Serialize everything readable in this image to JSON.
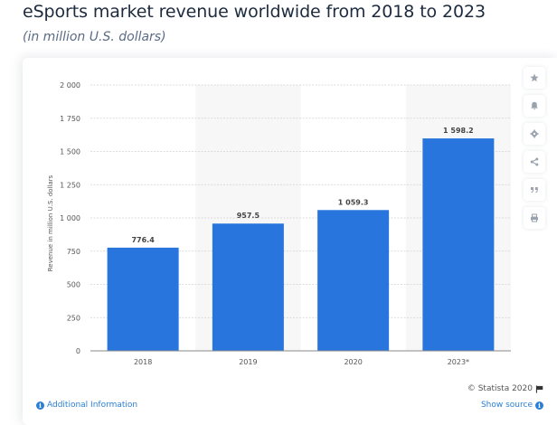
{
  "header": {
    "title": "eSports market revenue worldwide from 2018 to 2023",
    "subtitle": "(in million U.S. dollars)"
  },
  "chart_data": {
    "type": "bar",
    "title": "eSports market revenue worldwide from 2018 to 2023",
    "subtitle": "(in million U.S. dollars)",
    "categories": [
      "2018",
      "2019",
      "2020",
      "2023*"
    ],
    "values": [
      776.4,
      957.5,
      1059.3,
      1598.2
    ],
    "value_labels": [
      "776.4",
      "957.5",
      "1 059.3",
      "1 598.2"
    ],
    "xlabel": "",
    "ylabel": "Revenue in million U.S. dollars",
    "ylim": [
      0,
      2000
    ],
    "yticks": [
      0,
      250,
      500,
      750,
      1000,
      1250,
      1500,
      1750,
      2000
    ],
    "ytick_labels": [
      "0",
      "250",
      "500",
      "750",
      "1 000",
      "1 250",
      "1 500",
      "1 750",
      "2 000"
    ],
    "grid": true,
    "bar_color": "#2876dd",
    "alt_band_color": "#f7f7f7"
  },
  "toolbar": {
    "items": [
      {
        "name": "favorite",
        "icon": "star-icon"
      },
      {
        "name": "notification",
        "icon": "bell-icon"
      },
      {
        "name": "settings",
        "icon": "gear-icon"
      },
      {
        "name": "share",
        "icon": "share-icon"
      },
      {
        "name": "cite",
        "icon": "quote-icon"
      },
      {
        "name": "print",
        "icon": "print-icon"
      }
    ]
  },
  "footer": {
    "additional_info": "Additional Information",
    "copyright": "© Statista 2020",
    "show_source": "Show source"
  }
}
